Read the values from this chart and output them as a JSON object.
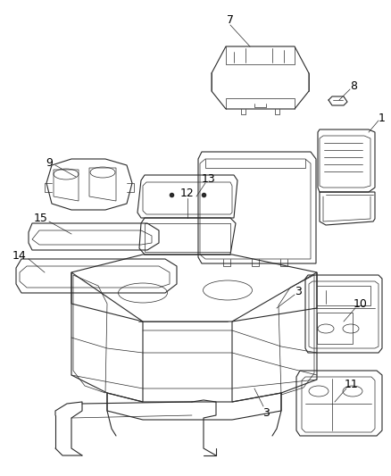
{
  "background_color": "#ffffff",
  "line_color": "#2a2a2a",
  "figsize": [
    4.38,
    5.33
  ],
  "dpi": 100,
  "xlim": [
    0,
    438
  ],
  "ylim": [
    0,
    533
  ]
}
